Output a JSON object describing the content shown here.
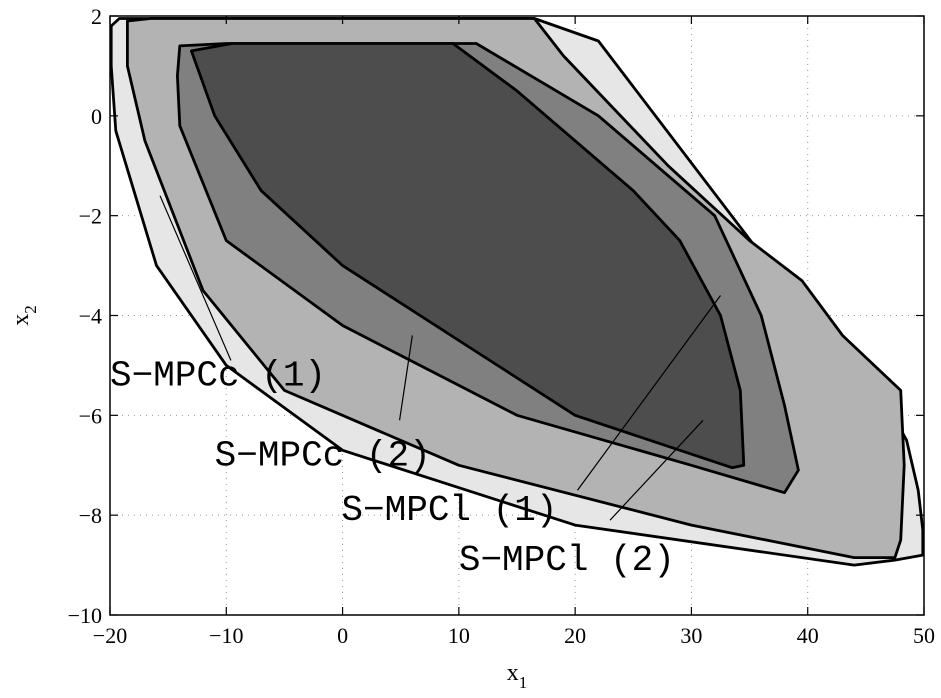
{
  "chart_data": {
    "type": "area",
    "title": "",
    "xlabel": "x",
    "xlabel_sub": "1",
    "ylabel": "x",
    "ylabel_sub": "2",
    "xlim": [
      -20,
      50
    ],
    "ylim": [
      -10,
      2
    ],
    "xticks": [
      -20,
      -10,
      0,
      10,
      20,
      30,
      40,
      50
    ],
    "yticks": [
      -10,
      -8,
      -6,
      -4,
      -2,
      0,
      2
    ],
    "xtick_labels": [
      "−20",
      "−10",
      "0",
      "10",
      "20",
      "30",
      "40",
      "50"
    ],
    "ytick_labels": [
      "−10",
      "−8",
      "−6",
      "−4",
      "−2",
      "0",
      "2"
    ],
    "grid": true,
    "colors": {
      "s_mpcc_1": "#e6e6e6",
      "s_mpcc_2": "#b3b3b3",
      "s_mpcl_1": "#808080",
      "s_mpcl_2": "#4d4d4d",
      "stroke": "#000000"
    },
    "series": [
      {
        "key": "s_mpcc_1",
        "polygon": [
          [
            -19.9,
            1.8
          ],
          [
            -19.2,
            1.95
          ],
          [
            16.5,
            1.95
          ],
          [
            22,
            1.5
          ],
          [
            40,
            -4
          ],
          [
            45,
            -5
          ],
          [
            48.5,
            -6.5
          ],
          [
            49.5,
            -7.5
          ],
          [
            49.9,
            -8.3
          ],
          [
            49.9,
            -8.8
          ],
          [
            47.5,
            -8.9
          ],
          [
            44,
            -9
          ],
          [
            20,
            -8.2
          ],
          [
            0,
            -6.7
          ],
          [
            -10,
            -5
          ],
          [
            -16,
            -3
          ],
          [
            -19.5,
            -0.3
          ],
          [
            -19.9,
            1
          ]
        ]
      },
      {
        "key": "s_mpcc_2",
        "polygon": [
          [
            -18.5,
            1.9
          ],
          [
            -16.5,
            1.95
          ],
          [
            16.5,
            1.95
          ],
          [
            19,
            1.2
          ],
          [
            28,
            -1
          ],
          [
            35,
            -2.5
          ],
          [
            39.5,
            -3.3
          ],
          [
            43,
            -4.4
          ],
          [
            48,
            -5.5
          ],
          [
            48.3,
            -7
          ],
          [
            48,
            -8.5
          ],
          [
            47.5,
            -8.85
          ],
          [
            44,
            -8.85
          ],
          [
            30,
            -8.2
          ],
          [
            10,
            -7
          ],
          [
            -5,
            -5.5
          ],
          [
            -12,
            -3.5
          ],
          [
            -17,
            -0.5
          ],
          [
            -18.5,
            1
          ]
        ]
      },
      {
        "key": "s_mpcl_1",
        "polygon": [
          [
            -14,
            1.4
          ],
          [
            -10,
            1.45
          ],
          [
            11.5,
            1.45
          ],
          [
            22,
            0
          ],
          [
            32,
            -2
          ],
          [
            36,
            -4
          ],
          [
            38,
            -5.8
          ],
          [
            39.2,
            -7.1
          ],
          [
            38,
            -7.55
          ],
          [
            30,
            -7
          ],
          [
            15,
            -6
          ],
          [
            0,
            -4.2
          ],
          [
            -10,
            -2.5
          ],
          [
            -14,
            -0.2
          ],
          [
            -14.2,
            0.8
          ]
        ]
      },
      {
        "key": "s_mpcl_2",
        "polygon": [
          [
            -13,
            1.3
          ],
          [
            -9.5,
            1.45
          ],
          [
            3,
            1.45
          ],
          [
            9.5,
            1.45
          ],
          [
            15,
            0.5
          ],
          [
            25,
            -1.5
          ],
          [
            29,
            -2.5
          ],
          [
            32.5,
            -4
          ],
          [
            34.2,
            -5.5
          ],
          [
            34.5,
            -7
          ],
          [
            33.5,
            -7.05
          ],
          [
            20,
            -6
          ],
          [
            10,
            -4.5
          ],
          [
            0,
            -3
          ],
          [
            -7,
            -1.5
          ],
          [
            -11,
            0
          ]
        ]
      }
    ],
    "annotations": [
      {
        "text": "S−MPCc (1)",
        "text_at": [
          -20,
          -5.4
        ],
        "line_from": [
          -15.7,
          -1.6
        ],
        "line_to": [
          -9.6,
          -4.9
        ]
      },
      {
        "text": "S−MPCc (2)",
        "text_at": [
          -11,
          -7
        ],
        "line_from": [
          6,
          -4.4
        ],
        "line_to": [
          4.9,
          -6.1
        ]
      },
      {
        "text": "S−MPCl (1)",
        "text_at": [
          -0.1,
          -8.1
        ],
        "line_from": [
          32.5,
          -3.6
        ],
        "line_to": [
          20.2,
          -7.5
        ]
      },
      {
        "text": "S−MPCl (2)",
        "text_at": [
          10,
          -9.1
        ],
        "line_from": [
          31,
          -6.1
        ],
        "line_to": [
          23,
          -8.1
        ]
      }
    ]
  }
}
